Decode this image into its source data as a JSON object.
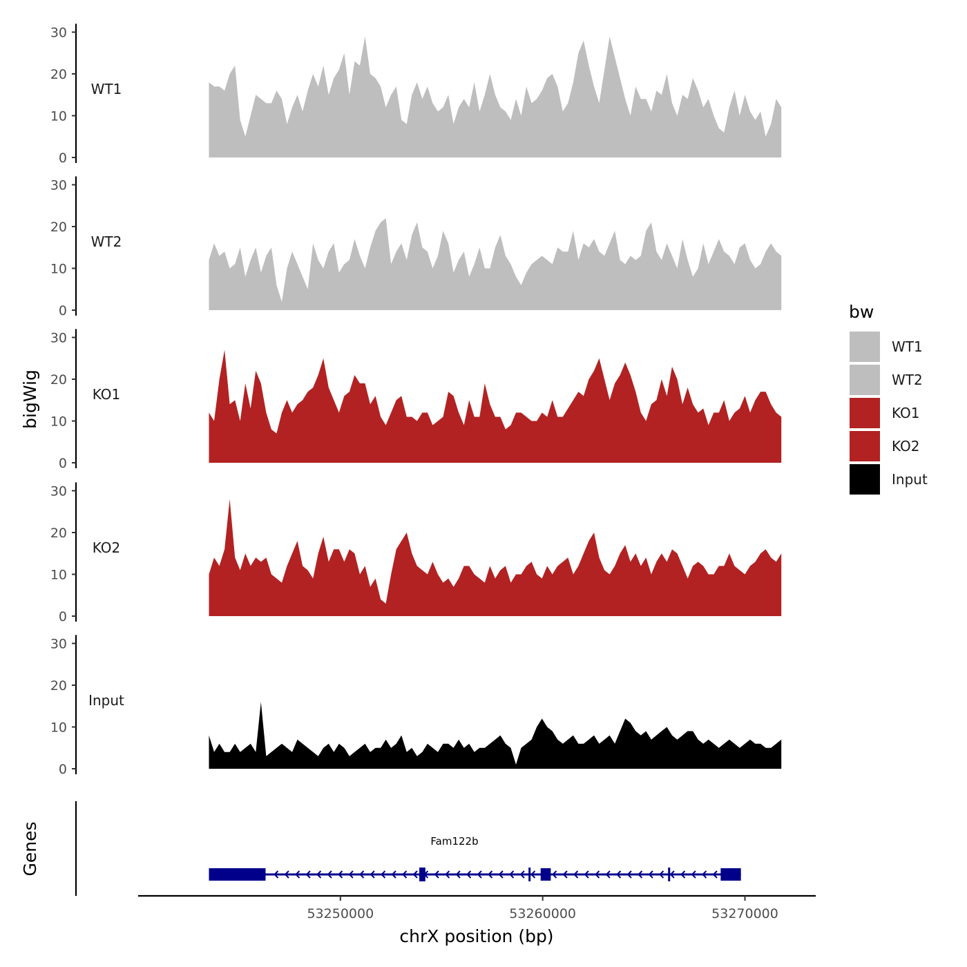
{
  "chart_data": {
    "type": "area",
    "title": "",
    "ylabel": "bigWig",
    "xlabel": "chrX position (bp)",
    "genes_label": "Genes",
    "xlim": [
      53240000,
      53273500
    ],
    "data_range": [
      53243500,
      53271800
    ],
    "ylim": [
      0,
      32
    ],
    "y_ticks": [
      0,
      10,
      20,
      30
    ],
    "y_tick_labels": [
      "0",
      "10",
      "20",
      "30"
    ],
    "x_ticks": [
      53250000,
      53260000,
      53270000
    ],
    "x_tick_labels": [
      "53250000",
      "53260000",
      "53270000"
    ],
    "legend": {
      "title": "bw",
      "position": "right",
      "entries": [
        {
          "label": "WT1",
          "color": "#bebebe"
        },
        {
          "label": "WT2",
          "color": "#bebebe"
        },
        {
          "label": "KO1",
          "color": "#b22222"
        },
        {
          "label": "KO2",
          "color": "#b22222"
        },
        {
          "label": "Input",
          "color": "#000000"
        }
      ]
    },
    "series": [
      {
        "name": "WT1",
        "color": "#bebebe",
        "values": [
          18,
          17,
          17,
          16,
          20,
          22,
          9,
          5,
          10,
          15,
          14,
          13,
          13,
          16,
          14,
          8,
          12,
          15,
          11,
          16,
          20,
          17,
          22,
          15,
          19,
          21,
          25,
          15,
          23,
          22,
          29,
          20,
          19,
          17,
          12,
          15,
          17,
          9,
          8,
          15,
          18,
          14,
          17,
          13,
          11,
          12,
          15,
          8,
          12,
          14,
          12,
          18,
          11,
          15,
          20,
          15,
          12,
          11,
          9,
          14,
          10,
          17,
          13,
          14,
          16,
          19,
          20,
          17,
          11,
          13,
          18,
          25,
          28,
          22,
          17,
          13,
          21,
          29,
          24,
          19,
          14,
          10,
          17,
          14,
          14,
          11,
          16,
          15,
          20,
          13,
          10,
          15,
          14,
          19,
          16,
          12,
          14,
          10,
          7,
          6,
          12,
          16,
          10,
          15,
          11,
          9,
          11,
          5,
          8,
          14,
          12
        ]
      },
      {
        "name": "WT2",
        "color": "#bebebe",
        "values": [
          12,
          16,
          13,
          14,
          10,
          11,
          15,
          8,
          12,
          15,
          9,
          13,
          15,
          6,
          2,
          10,
          14,
          11,
          8,
          5,
          16,
          12,
          10,
          14,
          16,
          9,
          11,
          12,
          17,
          13,
          10,
          15,
          19,
          21,
          22,
          11,
          14,
          16,
          12,
          18,
          21,
          15,
          14,
          10,
          13,
          19,
          16,
          9,
          12,
          14,
          8,
          11,
          15,
          10,
          10,
          15,
          18,
          13,
          11,
          8,
          6,
          9,
          11,
          12,
          13,
          12,
          11,
          15,
          14,
          14,
          19,
          12,
          16,
          15,
          17,
          14,
          13,
          16,
          19,
          12,
          11,
          13,
          12,
          13,
          19,
          21,
          14,
          12,
          16,
          13,
          10,
          17,
          12,
          8,
          10,
          16,
          11,
          14,
          17,
          14,
          13,
          11,
          15,
          16,
          12,
          10,
          11,
          14,
          16,
          14,
          13
        ]
      },
      {
        "name": "KO1",
        "color": "#b22222",
        "values": [
          12,
          10,
          20,
          27,
          14,
          15,
          10,
          19,
          13,
          22,
          19,
          12,
          8,
          7,
          12,
          15,
          12,
          14,
          15,
          17,
          18,
          21,
          25,
          18,
          15,
          12,
          16,
          17,
          21,
          19,
          19,
          14,
          16,
          11,
          9,
          12,
          15,
          16,
          11,
          11,
          10,
          12,
          12,
          9,
          10,
          11,
          17,
          16,
          12,
          9,
          15,
          11,
          11,
          19,
          14,
          11,
          11,
          8,
          9,
          12,
          12,
          11,
          10,
          10,
          12,
          11,
          15,
          11,
          11,
          13,
          15,
          17,
          16,
          20,
          22,
          25,
          20,
          15,
          19,
          21,
          24,
          21,
          17,
          12,
          10,
          14,
          15,
          20,
          16,
          23,
          20,
          14,
          18,
          14,
          12,
          13,
          9,
          12,
          12,
          15,
          10,
          12,
          13,
          16,
          12,
          15,
          17,
          17,
          14,
          12,
          11
        ]
      },
      {
        "name": "KO2",
        "color": "#b22222",
        "values": [
          10,
          14,
          12,
          16,
          28,
          14,
          11,
          15,
          12,
          14,
          13,
          14,
          10,
          9,
          8,
          12,
          15,
          18,
          12,
          11,
          9,
          15,
          19,
          13,
          16,
          16,
          13,
          16,
          15,
          10,
          12,
          7,
          9,
          4,
          3,
          10,
          16,
          18,
          20,
          15,
          12,
          11,
          10,
          13,
          10,
          8,
          9,
          7,
          9,
          12,
          12,
          10,
          9,
          8,
          12,
          9,
          11,
          12,
          8,
          10,
          10,
          12,
          13,
          10,
          9,
          12,
          10,
          12,
          13,
          14,
          10,
          12,
          15,
          18,
          20,
          14,
          11,
          10,
          12,
          15,
          17,
          13,
          15,
          12,
          14,
          10,
          13,
          15,
          13,
          16,
          15,
          12,
          9,
          12,
          13,
          12,
          10,
          10,
          12,
          12,
          15,
          12,
          11,
          10,
          12,
          13,
          15,
          16,
          14,
          13,
          15
        ]
      },
      {
        "name": "Input",
        "color": "#000000",
        "values": [
          8,
          4,
          6,
          4,
          4,
          6,
          4,
          5,
          6,
          4,
          16,
          3,
          4,
          5,
          6,
          5,
          4,
          7,
          6,
          5,
          4,
          3,
          5,
          6,
          4,
          6,
          5,
          3,
          4,
          5,
          6,
          4,
          5,
          5,
          7,
          5,
          6,
          8,
          4,
          5,
          3,
          4,
          6,
          5,
          4,
          6,
          6,
          5,
          7,
          5,
          6,
          4,
          5,
          5,
          6,
          7,
          8,
          6,
          5,
          1,
          5,
          6,
          7,
          10,
          12,
          10,
          9,
          7,
          6,
          7,
          8,
          6,
          6,
          7,
          8,
          6,
          7,
          8,
          6,
          9,
          12,
          11,
          9,
          8,
          9,
          7,
          8,
          9,
          10,
          8,
          7,
          8,
          9,
          9,
          7,
          6,
          7,
          6,
          5,
          6,
          7,
          6,
          5,
          6,
          7,
          6,
          6,
          5,
          5,
          6,
          7
        ]
      }
    ],
    "gene_track": {
      "gene": "Fam122b",
      "strand": "-",
      "color": "#00008b",
      "span": [
        53243500,
        53269800
      ],
      "exons": [
        {
          "start": 53243500,
          "end": 53244900,
          "type": "utr"
        },
        {
          "start": 53244900,
          "end": 53246300,
          "type": "cds"
        },
        {
          "start": 53253900,
          "end": 53254200,
          "type": "cds"
        },
        {
          "start": 53259300,
          "end": 53259400,
          "type": "cds"
        },
        {
          "start": 53259900,
          "end": 53260400,
          "type": "cds"
        },
        {
          "start": 53266200,
          "end": 53266300,
          "type": "cds"
        },
        {
          "start": 53268800,
          "end": 53269800,
          "type": "utr"
        }
      ]
    }
  }
}
